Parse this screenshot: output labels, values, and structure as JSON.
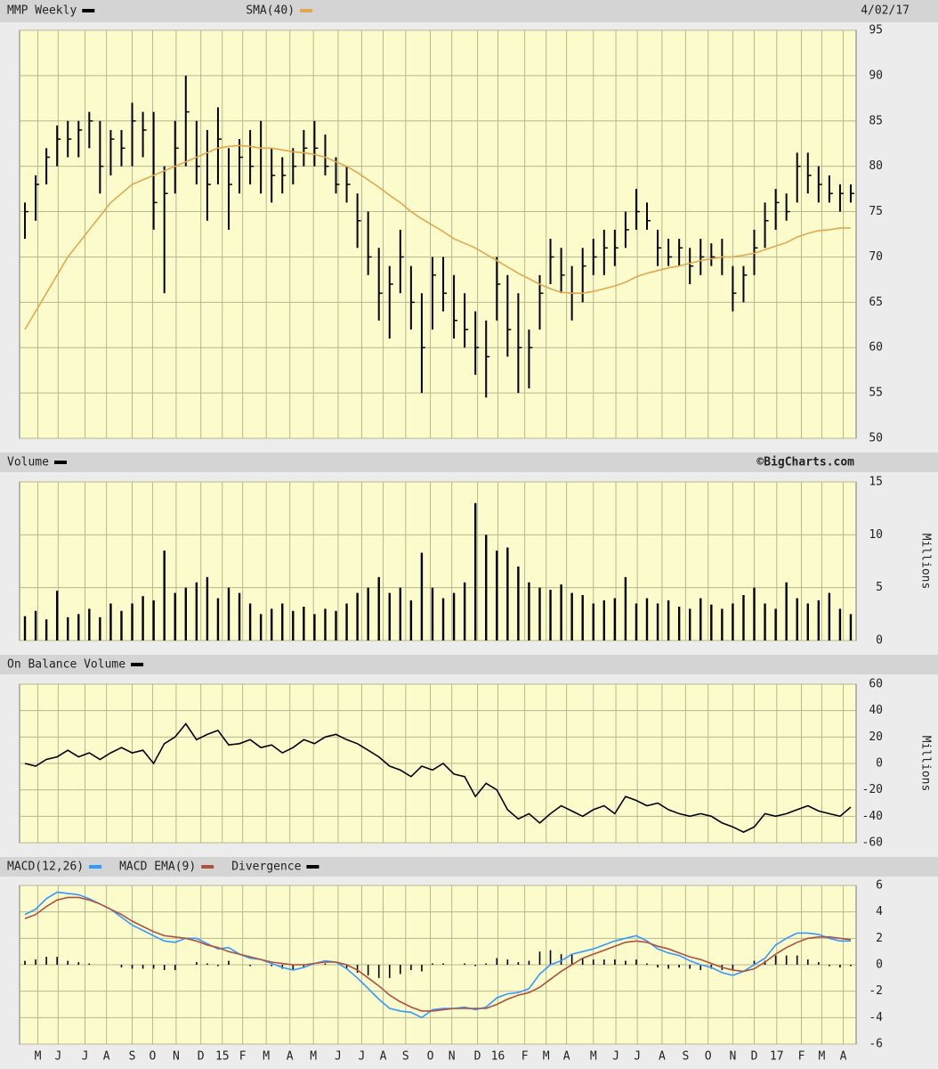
{
  "chart_data": [
    {
      "type": "hlc",
      "date": "4/02/17",
      "xlim": [
        0,
        78
      ],
      "ylim": [
        50,
        95
      ],
      "yticks": [
        50,
        55,
        60,
        65,
        70,
        75,
        80,
        85,
        90,
        95
      ],
      "grid": true,
      "series": [
        {
          "name": "MMP Weekly",
          "color": "#000000",
          "high": [
            76,
            79,
            82,
            84.5,
            85,
            85,
            86,
            85,
            84,
            84,
            87,
            86,
            86,
            80,
            85,
            90,
            85,
            84,
            86.5,
            82,
            83,
            84,
            85,
            82,
            81,
            82,
            84,
            85,
            83.5,
            81,
            80,
            77,
            75,
            71,
            69,
            73,
            69,
            66,
            70,
            70,
            68,
            66,
            64,
            63,
            70,
            68,
            66,
            62,
            68,
            72,
            71,
            69,
            71,
            72,
            73,
            73,
            75,
            77.5,
            76,
            73,
            72,
            72,
            71,
            72,
            71.5,
            72,
            69,
            69,
            73,
            76,
            77.5,
            77,
            81.5,
            81.5,
            80,
            79,
            78,
            78
          ],
          "low": [
            72,
            74,
            78,
            80,
            81,
            81,
            82,
            77,
            79,
            80,
            80,
            81,
            73,
            66,
            77,
            80,
            78,
            74,
            78,
            73,
            77,
            78,
            77,
            76,
            77,
            78,
            80,
            80,
            79,
            77,
            76,
            71,
            68,
            63,
            61,
            66,
            62,
            55,
            62,
            64,
            61,
            60,
            57,
            54.5,
            63,
            59,
            55,
            55.5,
            62,
            67,
            66,
            63,
            65,
            68,
            68,
            69,
            71,
            73,
            73,
            69,
            69,
            69,
            67,
            68,
            69,
            68,
            64,
            65,
            68,
            71,
            73,
            74,
            76,
            77,
            76,
            76,
            75,
            76
          ],
          "close": [
            75,
            78,
            81,
            83,
            83,
            84,
            85,
            80,
            83,
            82,
            85,
            84,
            76,
            77,
            82,
            86,
            80,
            78,
            83,
            78,
            81,
            80,
            82,
            79,
            79,
            80,
            82,
            82,
            80,
            78,
            78,
            74,
            70,
            66,
            67,
            70,
            65,
            60,
            68,
            66,
            63,
            62,
            60,
            59,
            67,
            62,
            60,
            60,
            66,
            70,
            68,
            66,
            69,
            70,
            71,
            71,
            73,
            75,
            74,
            71,
            70,
            71,
            69,
            70,
            70,
            70,
            66,
            68,
            71,
            74,
            76,
            75,
            80,
            79,
            78,
            77,
            77,
            77
          ]
        },
        {
          "name": "SMA(40)",
          "color": "#e0a850",
          "values": [
            62,
            64,
            66,
            68,
            70,
            71.5,
            73,
            74.5,
            76,
            77,
            78,
            78.5,
            79,
            79.5,
            80,
            80.5,
            81,
            81.5,
            82,
            82.2,
            82.3,
            82.2,
            82,
            82,
            81.8,
            81.6,
            81.5,
            81.3,
            81,
            80.5,
            80,
            79.3,
            78.5,
            77.7,
            76.8,
            76,
            75,
            74.2,
            73.5,
            72.8,
            72,
            71.5,
            71,
            70.3,
            69.6,
            68.9,
            68.2,
            67.6,
            67,
            66.5,
            66.1,
            66,
            66,
            66.2,
            66.5,
            66.8,
            67.2,
            67.8,
            68.2,
            68.5,
            68.8,
            69,
            69.3,
            69.6,
            69.8,
            70,
            70,
            70.2,
            70.4,
            70.8,
            71.2,
            71.6,
            72.2,
            72.6,
            72.9,
            73,
            73.2,
            73.2
          ]
        }
      ]
    },
    {
      "type": "bar",
      "credit": "©BigCharts.com",
      "y_label": "Millions",
      "xlim": [
        0,
        78
      ],
      "ylim": [
        0,
        15
      ],
      "yticks": [
        0,
        5,
        10,
        15
      ],
      "grid": true,
      "series": [
        {
          "name": "Volume",
          "color": "#000000",
          "values": [
            2.3,
            2.8,
            2,
            4.7,
            2.2,
            2.5,
            3,
            2.2,
            3.5,
            2.8,
            3.5,
            4.2,
            3.8,
            8.5,
            4.5,
            5,
            5.5,
            6,
            4,
            5,
            4.5,
            3.5,
            2.5,
            3,
            3.5,
            2.8,
            3.2,
            2.5,
            3,
            2.8,
            3.5,
            4.5,
            5,
            6,
            4.5,
            5,
            3.8,
            8.3,
            5,
            4,
            4.5,
            5.5,
            13,
            10,
            8.5,
            8.8,
            7,
            5.5,
            5,
            4.8,
            5.3,
            4.5,
            4.3,
            3.5,
            3.8,
            4,
            6,
            3.5,
            4,
            3.5,
            3.8,
            3.2,
            3,
            4,
            3.4,
            3,
            3.5,
            4.3,
            5,
            3.5,
            3,
            5.5,
            4,
            3.5,
            3.8,
            4.5,
            3,
            2.5
          ]
        }
      ]
    },
    {
      "type": "line",
      "y_label": "Millions",
      "xlim": [
        0,
        78
      ],
      "ylim": [
        -60,
        60
      ],
      "yticks": [
        -60,
        -40,
        -20,
        0,
        20,
        40,
        60
      ],
      "grid": true,
      "series": [
        {
          "name": "On Balance Volume",
          "color": "#000000",
          "values": [
            0,
            -2,
            3,
            5,
            10,
            5,
            8,
            3,
            8,
            12,
            8,
            10,
            0,
            15,
            20,
            30,
            18,
            22,
            25,
            14,
            15,
            18,
            12,
            14,
            8,
            12,
            18,
            15,
            20,
            22,
            18,
            15,
            10,
            5,
            -2,
            -5,
            -10,
            -2,
            -5,
            0,
            -8,
            -10,
            -25,
            -15,
            -20,
            -35,
            -42,
            -38,
            -45,
            -38,
            -32,
            -36,
            -40,
            -35,
            -32,
            -38,
            -25,
            -28,
            -32,
            -30,
            -35,
            -38,
            -40,
            -38,
            -40,
            -45,
            -48,
            -52,
            -48,
            -38,
            -40,
            -38,
            -35,
            -32,
            -36,
            -38,
            -40,
            -33
          ]
        }
      ]
    },
    {
      "type": "macd",
      "xlim": [
        0,
        78
      ],
      "ylim": [
        -6,
        6
      ],
      "yticks": [
        -6,
        -4,
        -2,
        0,
        2,
        4,
        6
      ],
      "grid": true,
      "xticks": [
        {
          "value": 1.7,
          "label": "M"
        },
        {
          "value": 3.6,
          "label": "J"
        },
        {
          "value": 6.1,
          "label": "J"
        },
        {
          "value": 8.1,
          "label": "A"
        },
        {
          "value": 10.5,
          "label": "S"
        },
        {
          "value": 12.4,
          "label": "O"
        },
        {
          "value": 14.6,
          "label": "N"
        },
        {
          "value": 16.9,
          "label": "D"
        },
        {
          "value": 18.9,
          "label": "15"
        },
        {
          "value": 20.8,
          "label": "F"
        },
        {
          "value": 23,
          "label": "M"
        },
        {
          "value": 25.2,
          "label": "A"
        },
        {
          "value": 27.4,
          "label": "M"
        },
        {
          "value": 29.7,
          "label": "J"
        },
        {
          "value": 31.9,
          "label": "J"
        },
        {
          "value": 33.9,
          "label": "A"
        },
        {
          "value": 36,
          "label": "S"
        },
        {
          "value": 38.3,
          "label": "O"
        },
        {
          "value": 40.3,
          "label": "N"
        },
        {
          "value": 42.7,
          "label": "D"
        },
        {
          "value": 44.6,
          "label": "16"
        },
        {
          "value": 47.1,
          "label": "F"
        },
        {
          "value": 49.1,
          "label": "M"
        },
        {
          "value": 51,
          "label": "A"
        },
        {
          "value": 53.5,
          "label": "M"
        },
        {
          "value": 55.6,
          "label": "J"
        },
        {
          "value": 57.6,
          "label": "J"
        },
        {
          "value": 59.9,
          "label": "A"
        },
        {
          "value": 62.1,
          "label": "S"
        },
        {
          "value": 64.2,
          "label": "O"
        },
        {
          "value": 66.5,
          "label": "N"
        },
        {
          "value": 68.5,
          "label": "D"
        },
        {
          "value": 70.6,
          "label": "17"
        },
        {
          "value": 72.9,
          "label": "F"
        },
        {
          "value": 74.8,
          "label": "M"
        },
        {
          "value": 76.8,
          "label": "A"
        }
      ],
      "series": [
        {
          "name": "MACD(12,26)",
          "color": "#3399ff",
          "values": [
            3.8,
            4.2,
            5,
            5.5,
            5.4,
            5.3,
            5,
            4.6,
            4.2,
            3.6,
            3,
            2.6,
            2.2,
            1.8,
            1.7,
            2,
            2,
            1.6,
            1.2,
            1.3,
            0.8,
            0.5,
            0.4,
            0.1,
            -0.2,
            -0.4,
            -0.2,
            0.1,
            0.3,
            0.2,
            -0.3,
            -1,
            -1.8,
            -2.6,
            -3.3,
            -3.5,
            -3.6,
            -4,
            -3.4,
            -3.3,
            -3.3,
            -3.2,
            -3.4,
            -3.2,
            -2.5,
            -2.2,
            -2.1,
            -1.8,
            -0.7,
            0,
            0.3,
            0.8,
            1,
            1.2,
            1.5,
            1.8,
            2,
            2.2,
            1.8,
            1.2,
            0.9,
            0.7,
            0.3,
            0,
            -0.2,
            -0.6,
            -0.8,
            -0.5,
            0,
            0.5,
            1.5,
            2,
            2.4,
            2.4,
            2.3,
            2,
            1.8,
            1.8
          ]
        },
        {
          "name": "MACD EMA(9)",
          "color": "#b05040",
          "values": [
            3.5,
            3.8,
            4.4,
            4.9,
            5.1,
            5.1,
            4.9,
            4.6,
            4.2,
            3.8,
            3.3,
            2.9,
            2.5,
            2.2,
            2.1,
            2,
            1.8,
            1.5,
            1.3,
            1,
            0.8,
            0.6,
            0.4,
            0.2,
            0.1,
            0,
            0,
            0.1,
            0.2,
            0.2,
            0,
            -0.4,
            -1,
            -1.6,
            -2.3,
            -2.8,
            -3.2,
            -3.5,
            -3.5,
            -3.4,
            -3.3,
            -3.3,
            -3.3,
            -3.3,
            -3,
            -2.6,
            -2.3,
            -2.1,
            -1.7,
            -1.1,
            -0.5,
            0,
            0.5,
            0.8,
            1.1,
            1.4,
            1.7,
            1.8,
            1.7,
            1.4,
            1.2,
            0.9,
            0.6,
            0.4,
            0.1,
            -0.2,
            -0.4,
            -0.5,
            -0.3,
            0.2,
            0.8,
            1.3,
            1.7,
            2,
            2.1,
            2.1,
            2,
            1.9
          ]
        },
        {
          "name": "Divergence",
          "color": "#000000",
          "style": "bar",
          "values": [
            0.3,
            0.4,
            0.6,
            0.6,
            0.3,
            0.2,
            0.1,
            0,
            0,
            -0.2,
            -0.3,
            -0.3,
            -0.3,
            -0.4,
            -0.4,
            0,
            0.2,
            0.1,
            -0.1,
            0.3,
            0,
            -0.1,
            0,
            -0.1,
            -0.3,
            -0.4,
            -0.2,
            0,
            0.1,
            0,
            -0.3,
            -0.6,
            -0.8,
            -1,
            -1,
            -0.7,
            -0.4,
            -0.5,
            0.1,
            0.1,
            0,
            0.1,
            -0.1,
            0.1,
            0.5,
            0.4,
            0.2,
            0.3,
            1,
            1.1,
            0.8,
            0.8,
            0.5,
            0.4,
            0.4,
            0.4,
            0.3,
            0.4,
            0.1,
            -0.2,
            -0.3,
            -0.2,
            -0.3,
            -0.4,
            -0.3,
            -0.4,
            -0.4,
            0,
            0.3,
            0.3,
            0.7,
            0.7,
            0.7,
            0.4,
            0.2,
            -0.1,
            -0.2,
            -0.1
          ]
        }
      ]
    }
  ]
}
